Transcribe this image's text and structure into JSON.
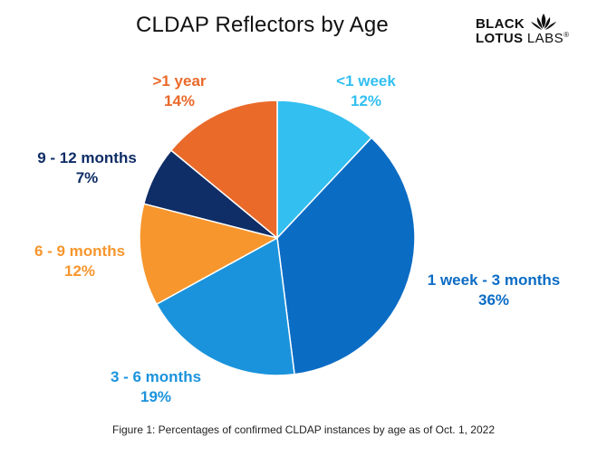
{
  "title": "CLDAP Reflectors by Age",
  "logo": {
    "line1": "BLACK",
    "line2_bold": "LOTUS",
    "line2_light": "LABS",
    "trademark": "®",
    "icon": "lotus-icon"
  },
  "caption": "Figure 1: Percentages of confirmed CLDAP instances by age as of Oct. 1, 2022",
  "chart_data": {
    "type": "pie",
    "title": "CLDAP Reflectors by Age",
    "start_angle_deg": 0,
    "direction": "clockwise",
    "slices": [
      {
        "label": "<1 week",
        "value": 12,
        "value_label": "12%",
        "color": "#33bff0",
        "label_color": "#33bff0"
      },
      {
        "label": "1 week - 3 months",
        "value": 36,
        "value_label": "36%",
        "color": "#0b6cc4",
        "label_color": "#0b6cc4"
      },
      {
        "label": "3 - 6 months",
        "value": 19,
        "value_label": "19%",
        "color": "#1b93dc",
        "label_color": "#1b93dc"
      },
      {
        "label": "6 - 9 months",
        "value": 12,
        "value_label": "12%",
        "color": "#f7962d",
        "label_color": "#f7962d"
      },
      {
        "label": "9 - 12 months",
        "value": 7,
        "value_label": "7%",
        "color": "#0f2d66",
        "label_color": "#0f2d66"
      },
      {
        "label": ">1 year",
        "value": 14,
        "value_label": "14%",
        "color": "#ea6a2a",
        "label_color": "#ea6a2a"
      }
    ]
  }
}
